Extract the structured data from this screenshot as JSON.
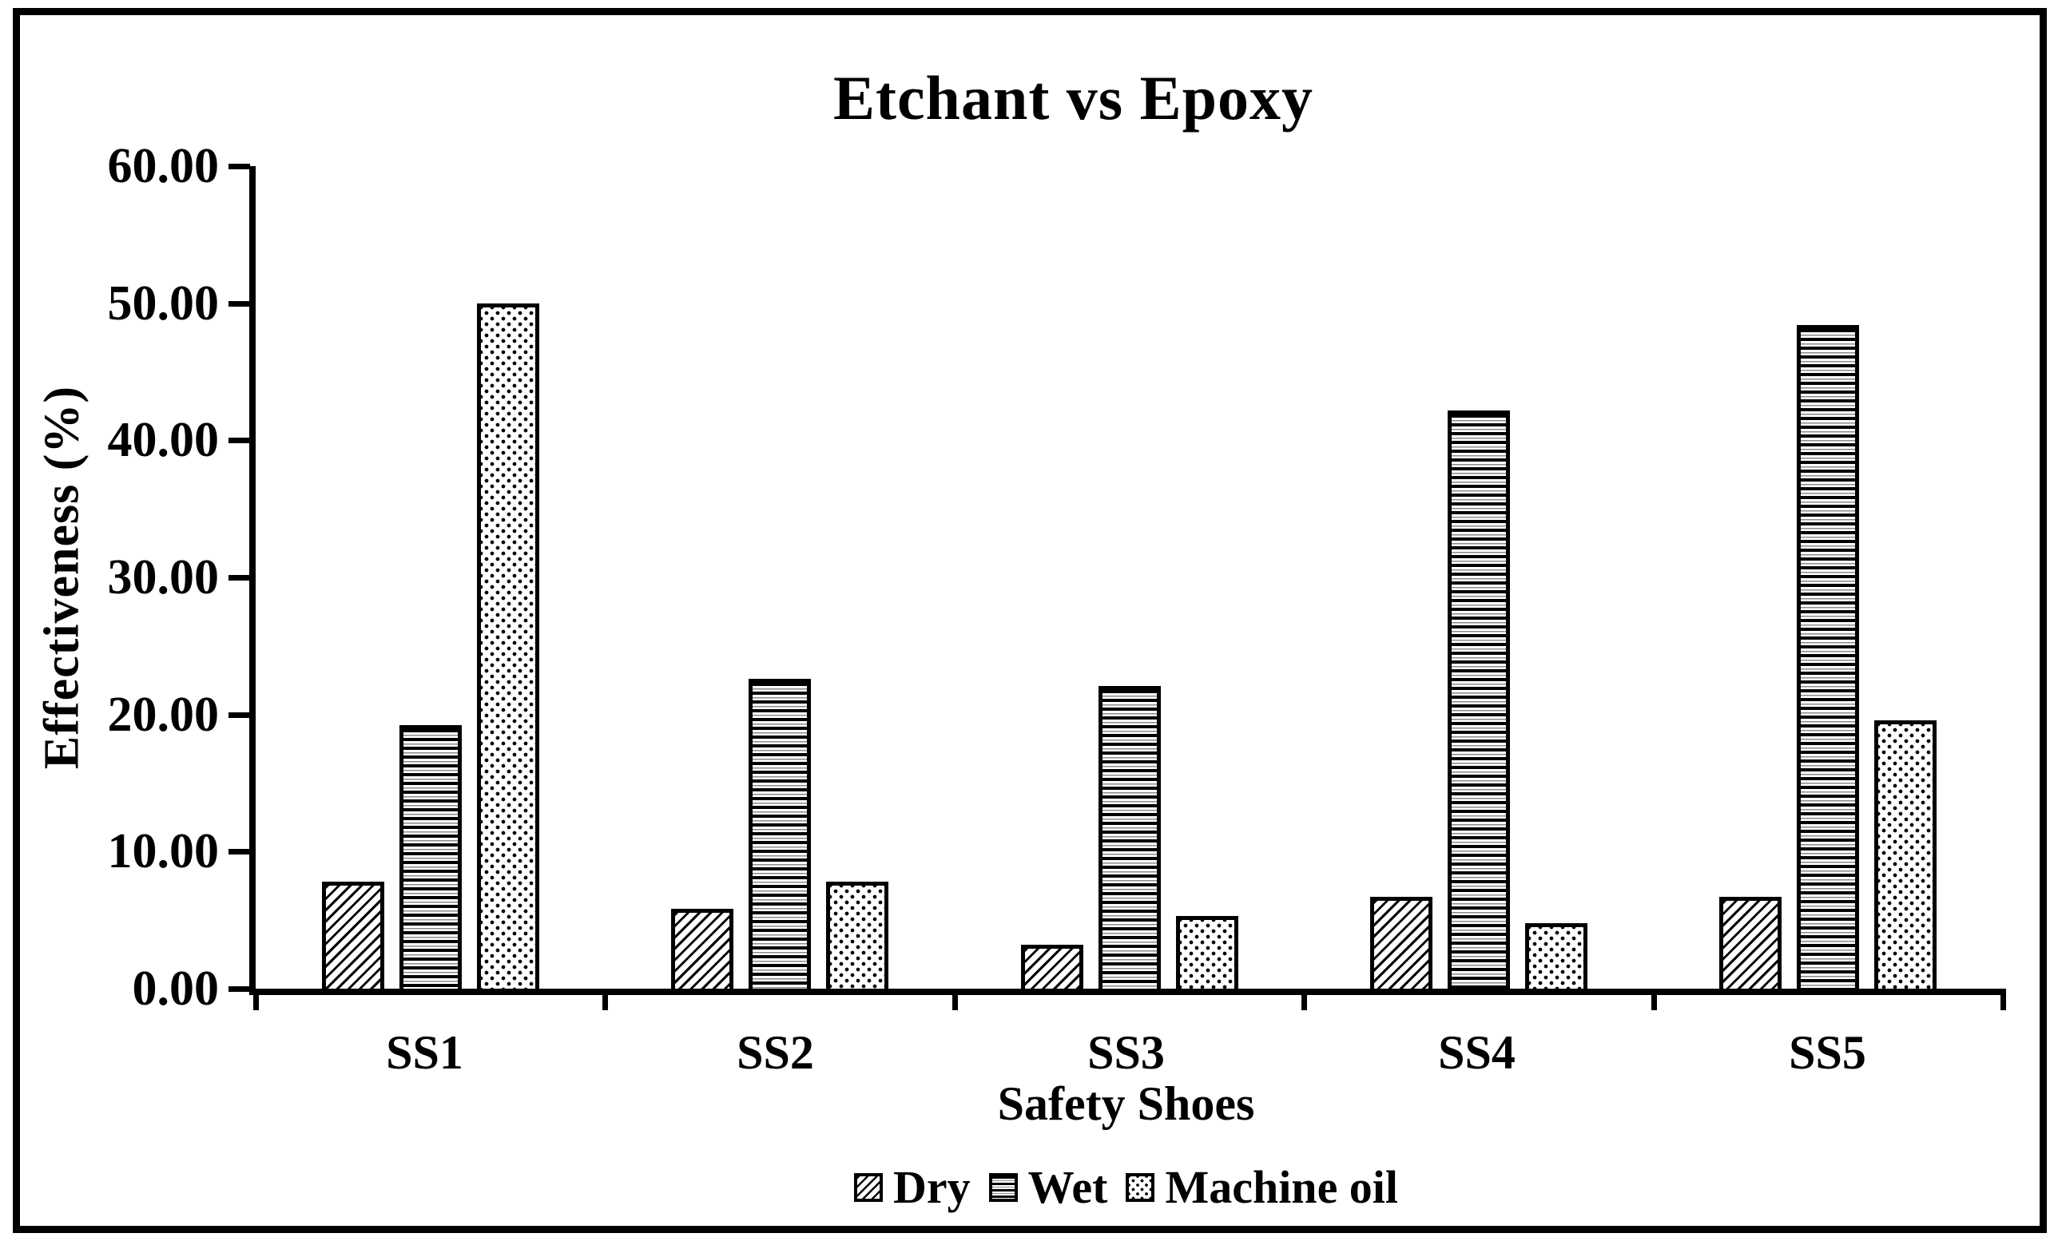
{
  "chart_data": {
    "type": "bar",
    "title": "Etchant vs Epoxy",
    "xlabel": "Safety Shoes",
    "ylabel": "Effectiveness (%)",
    "categories": [
      "SS1",
      "SS2",
      "SS3",
      "SS4",
      "SS5"
    ],
    "series": [
      {
        "name": "Dry",
        "pattern": "diagonal-hatch",
        "values": [
          7.8,
          5.8,
          3.2,
          6.7,
          6.7
        ]
      },
      {
        "name": "Wet",
        "pattern": "horizontal-lines",
        "values": [
          19.2,
          22.6,
          22.1,
          42.2,
          48.4
        ]
      },
      {
        "name": "Machine oil",
        "pattern": "dots",
        "values": [
          50.0,
          7.8,
          5.3,
          4.8,
          19.6
        ]
      }
    ],
    "ylim": [
      0,
      60
    ],
    "yticks": [
      {
        "value": 0,
        "label": "0.00"
      },
      {
        "value": 10,
        "label": "10.00"
      },
      {
        "value": 20,
        "label": "20.00"
      },
      {
        "value": 30,
        "label": "30.00"
      },
      {
        "value": 40,
        "label": "40.00"
      },
      {
        "value": 50,
        "label": "50.00"
      },
      {
        "value": 60,
        "label": "60.00"
      }
    ],
    "grid": false,
    "legend_position": "bottom",
    "colors": {
      "ink": "#000000",
      "background": "#ffffff"
    }
  }
}
